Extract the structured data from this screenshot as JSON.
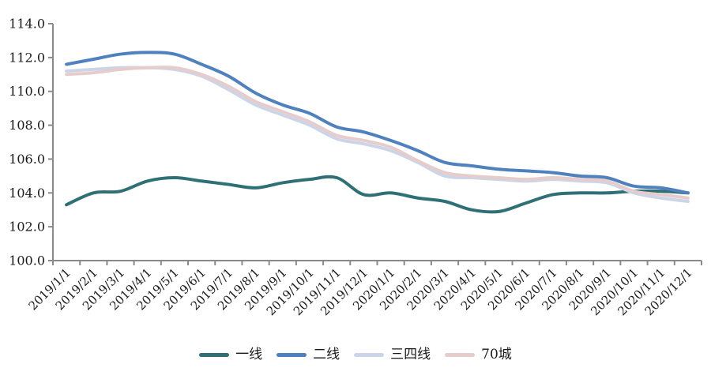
{
  "chart_data": {
    "type": "line",
    "title": "",
    "xlabel": "",
    "ylabel": "",
    "background": "#ffffff",
    "axis_color": "#8a8a8a",
    "text_color": "#1a1a1a",
    "grid": false,
    "legend_position": "bottom",
    "y_axis": {
      "min": 100,
      "max": 114,
      "step": 2,
      "decimals": 1
    },
    "x_axis": {
      "label_rotation": -45
    },
    "categories": [
      "2019/1/1",
      "2019/2/1",
      "2019/3/1",
      "2019/4/1",
      "2019/5/1",
      "2019/6/1",
      "2019/7/1",
      "2019/8/1",
      "2019/9/1",
      "2019/10/1",
      "2019/11/1",
      "2019/12/1",
      "2020/1/1",
      "2020/2/1",
      "2020/3/1",
      "2020/4/1",
      "2020/5/1",
      "2020/6/1",
      "2020/7/1",
      "2020/8/1",
      "2020/9/1",
      "2020/10/1",
      "2020/11/1",
      "2020/12/1"
    ],
    "series": [
      {
        "name": "一线",
        "color": "#2f6f76",
        "values": [
          103.3,
          104.0,
          104.1,
          104.7,
          104.9,
          104.7,
          104.5,
          104.3,
          104.6,
          104.8,
          104.9,
          103.9,
          104.0,
          103.7,
          103.5,
          103.0,
          102.9,
          103.4,
          103.9,
          104.0,
          104.0,
          104.1,
          104.1,
          104.0
        ]
      },
      {
        "name": "二线",
        "color": "#4e81bd",
        "values": [
          111.6,
          111.9,
          112.2,
          112.3,
          112.2,
          111.6,
          110.9,
          109.9,
          109.2,
          108.7,
          107.9,
          107.6,
          107.1,
          106.5,
          105.8,
          105.6,
          105.4,
          105.3,
          105.2,
          105.0,
          104.9,
          104.4,
          104.3,
          104.0
        ]
      },
      {
        "name": "三四线",
        "color": "#ccd5e8",
        "values": [
          111.2,
          111.3,
          111.4,
          111.4,
          111.3,
          110.9,
          110.1,
          109.2,
          108.6,
          108.0,
          107.2,
          106.9,
          106.5,
          105.8,
          105.0,
          104.9,
          104.8,
          104.7,
          104.8,
          104.7,
          104.6,
          104.0,
          103.7,
          103.5
        ]
      },
      {
        "name": "70城",
        "color": "#e6cdcb",
        "values": [
          111.0,
          111.1,
          111.3,
          111.4,
          111.4,
          111.0,
          110.3,
          109.4,
          108.8,
          108.2,
          107.4,
          107.1,
          106.7,
          105.9,
          105.2,
          105.0,
          104.9,
          104.8,
          104.9,
          104.8,
          104.7,
          104.1,
          103.9,
          103.7
        ]
      }
    ]
  }
}
